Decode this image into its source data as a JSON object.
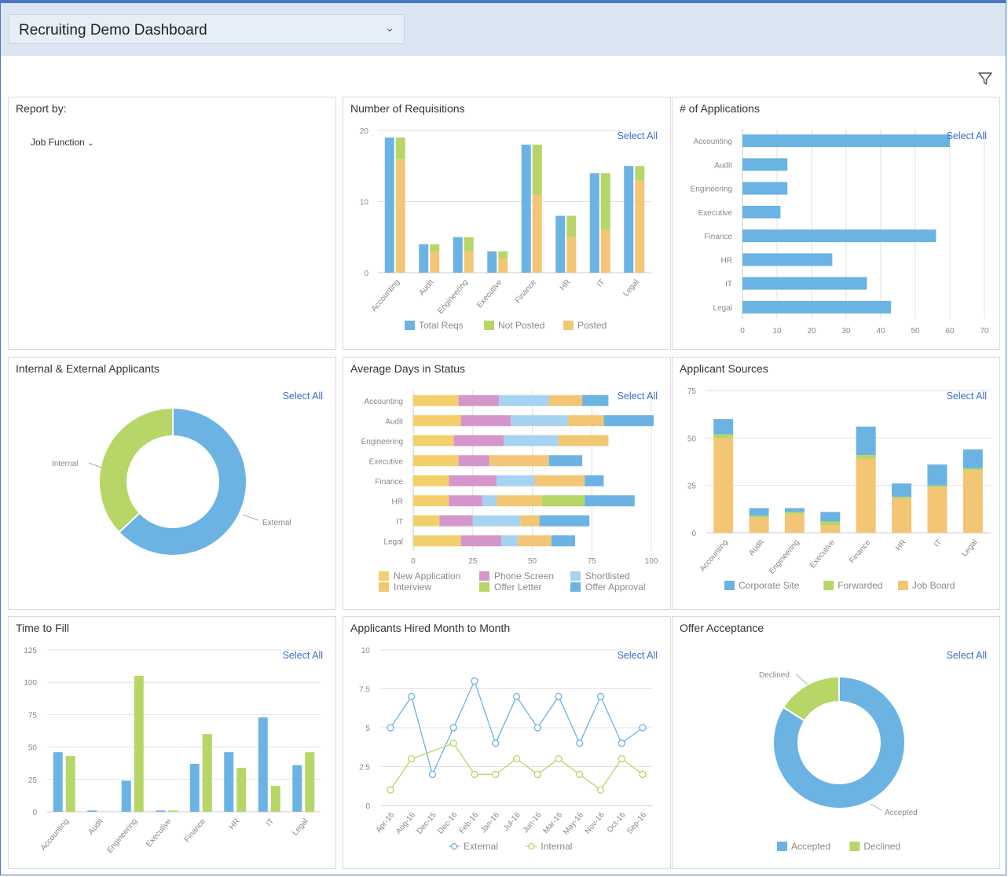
{
  "header": {
    "dashboard_title": "Recruiting Demo Dashboard"
  },
  "colors": {
    "blue": "#6bb3e2",
    "green": "#b6d667",
    "orange": "#f3c676",
    "yellow": "#f2d06b",
    "purple": "#d597cb",
    "lightblue": "#a7d3f2",
    "accent": "#3a6cc6"
  },
  "select_all": "Select All",
  "report_by": {
    "title": "Report by:",
    "dropdown": "Job Function"
  },
  "requisitions": {
    "title": "Number of Requisitions",
    "chart_data": {
      "type": "bar",
      "categories": [
        "Accounting",
        "Audit",
        "Engineering",
        "Executive",
        "Finance",
        "HR",
        "IT",
        "Legal"
      ],
      "y_ticks": [
        "20",
        "10",
        "0"
      ],
      "ylim": [
        0,
        20
      ],
      "series": [
        {
          "name": "Total Reqs",
          "values": [
            19,
            4,
            5,
            3,
            18,
            8,
            14,
            15
          ]
        },
        {
          "name": "Not Posted",
          "values": [
            3,
            1,
            2,
            1,
            7,
            3,
            8,
            2
          ]
        },
        {
          "name": "Posted",
          "values": [
            16,
            3,
            3,
            2,
            11,
            5,
            6,
            13
          ]
        }
      ],
      "legend": [
        "Total Reqs",
        "Not Posted",
        "Posted"
      ]
    }
  },
  "applications": {
    "title": "# of Applications",
    "chart_data": {
      "type": "bar",
      "categories": [
        "Accounting",
        "Audit",
        "Engineering",
        "Executive",
        "Finance",
        "HR",
        "IT",
        "Legal"
      ],
      "values": [
        60,
        13,
        13,
        11,
        56,
        26,
        36,
        43
      ],
      "x_ticks": [
        "0",
        "10",
        "20",
        "30",
        "40",
        "50",
        "60",
        "70"
      ],
      "xlim": [
        0,
        70
      ]
    }
  },
  "internal_external": {
    "title": "Internal & External Applicants",
    "chart_data": {
      "type": "pie",
      "labels": [
        "External",
        "Internal"
      ],
      "values": [
        63,
        37
      ]
    }
  },
  "avg_days": {
    "title": "Average Days in Status",
    "chart_data": {
      "type": "bar",
      "categories": [
        "Accounting",
        "Audit",
        "Engineering",
        "Executive",
        "Finance",
        "HR",
        "IT",
        "Legal"
      ],
      "x_ticks": [
        "0",
        "25",
        "50",
        "75",
        "100"
      ],
      "xlim": [
        0,
        100
      ],
      "series": [
        {
          "name": "New Application",
          "values": [
            19,
            20,
            17,
            19,
            15,
            15,
            11,
            20
          ]
        },
        {
          "name": "Phone Screen",
          "values": [
            17,
            21,
            21,
            13,
            20,
            14,
            14,
            17
          ]
        },
        {
          "name": "Shortlisted",
          "values": [
            21,
            24,
            23,
            0,
            16,
            6,
            20,
            7
          ]
        },
        {
          "name": "Interview",
          "values": [
            14,
            15,
            21,
            25,
            21,
            19,
            8,
            14
          ]
        },
        {
          "name": "Offer Letter",
          "values": [
            0,
            0,
            0,
            0,
            0,
            18,
            0,
            0
          ]
        },
        {
          "name": "Offer Approval",
          "values": [
            11,
            21,
            0,
            14,
            8,
            21,
            21,
            10
          ]
        }
      ],
      "legend": [
        "New Application",
        "Phone Screen",
        "Shortlisted",
        "Interview",
        "Offer Letter",
        "Offer Approval"
      ]
    }
  },
  "sources": {
    "title": "Applicant Sources",
    "chart_data": {
      "type": "bar",
      "categories": [
        "Accounting",
        "Audit",
        "Engineering",
        "Executive",
        "Finance",
        "HR",
        "IT",
        "Legal"
      ],
      "y_ticks": [
        "75",
        "50",
        "25",
        "0"
      ],
      "ylim": [
        0,
        75
      ],
      "series": [
        {
          "name": "Job Board",
          "values": [
            50,
            8,
            10,
            4,
            39,
            18,
            24,
            33
          ]
        },
        {
          "name": "Forwarded",
          "values": [
            2,
            1,
            1,
            2,
            2,
            1,
            1,
            1
          ]
        },
        {
          "name": "Corporate Site",
          "values": [
            8,
            4,
            2,
            5,
            15,
            7,
            11,
            10
          ]
        }
      ],
      "legend": [
        "Corporate Site",
        "Forwarded",
        "Job Board"
      ]
    }
  },
  "time_to_fill": {
    "title": "Time to Fill",
    "chart_data": {
      "type": "bar",
      "categories": [
        "Accounting",
        "Audit",
        "Engineering",
        "Executive",
        "Finance",
        "HR",
        "IT",
        "Legal"
      ],
      "y_ticks": [
        "125",
        "100",
        "75",
        "50",
        "25",
        "0"
      ],
      "ylim": [
        0,
        125
      ],
      "series": [
        {
          "values": [
            46,
            1,
            24,
            1,
            37,
            46,
            73,
            36
          ]
        },
        {
          "values": [
            43,
            0,
            105,
            1,
            60,
            34,
            20,
            46
          ]
        }
      ]
    }
  },
  "hired": {
    "title": "Applicants Hired Month to Month",
    "chart_data": {
      "type": "line",
      "x": [
        "Apr-16",
        "Aug-16",
        "Dec-15",
        "Dec-16",
        "Feb-16",
        "Jan-16",
        "Jul-16",
        "Jun-16",
        "Mar-16",
        "May-16",
        "Nov-16",
        "Oct-16",
        "Sep-16"
      ],
      "y_ticks": [
        "10",
        "7.5",
        "5",
        "2.5",
        "0"
      ],
      "ylim": [
        0,
        10
      ],
      "series": [
        {
          "name": "External",
          "values": [
            5,
            7,
            2,
            5,
            8,
            4,
            7,
            5,
            7,
            4,
            7,
            4,
            5
          ]
        },
        {
          "name": "Internal",
          "values": [
            1,
            3,
            null,
            4,
            2,
            2,
            3,
            2,
            3,
            2,
            1,
            3,
            2
          ]
        }
      ],
      "legend": [
        "External",
        "Internal"
      ]
    }
  },
  "offer": {
    "title": "Offer Acceptance",
    "chart_data": {
      "type": "pie",
      "labels": [
        "Accepted",
        "Declined"
      ],
      "values": [
        84,
        16
      ],
      "legend": [
        "Accepted",
        "Declined"
      ]
    }
  }
}
